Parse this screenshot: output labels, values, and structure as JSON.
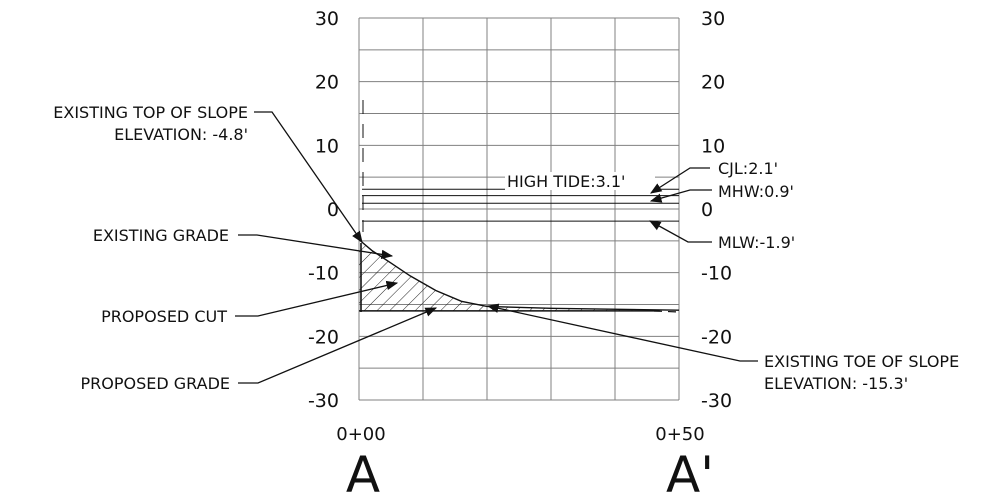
{
  "diagram": {
    "type": "cross-section",
    "y_axis": {
      "min": -30,
      "max": 30,
      "step": 10,
      "ticks": [
        "30",
        "20",
        "10",
        "0",
        "-10",
        "-20",
        "-30"
      ]
    },
    "x_axis": {
      "stations": [
        "0+00",
        "0+50"
      ],
      "grid_step_ft": 10
    },
    "section_labels": {
      "left": "A",
      "right": "A'"
    },
    "levels": [
      {
        "name": "CJL",
        "text": "CJL:2.1'",
        "elevation": 2.1
      },
      {
        "name": "MHW",
        "text": "MHW:0.9'",
        "elevation": 0.9
      },
      {
        "name": "MLW",
        "text": "MLW:-1.9'",
        "elevation": -1.9
      },
      {
        "name": "HIGH TIDE",
        "text": "HIGH TIDE:3.1'",
        "elevation": 3.1
      }
    ],
    "existing_grade": [
      [
        0,
        -4.8
      ],
      [
        2,
        -6.5
      ],
      [
        5,
        -8.5
      ],
      [
        8,
        -10.5
      ],
      [
        12,
        -12.8
      ],
      [
        16,
        -14.5
      ],
      [
        20,
        -15.3
      ],
      [
        30,
        -15.6
      ],
      [
        50,
        -15.9
      ]
    ],
    "proposed_grade": [
      [
        0,
        -16
      ],
      [
        47,
        -16
      ]
    ],
    "top_of_slope_elevation": -4.8,
    "toe_of_slope_elevation": -15.3,
    "callouts": {
      "top_of_slope": {
        "line1": "EXISTING TOP OF SLOPE",
        "line2": "ELEVATION: -4.8'"
      },
      "existing_grade": "EXISTING GRADE",
      "proposed_cut": "PROPOSED CUT",
      "proposed_grade": "PROPOSED GRADE",
      "toe_of_slope": {
        "line1": "EXISTING TOE OF SLOPE",
        "line2": "ELEVATION: -15.3'"
      }
    },
    "colors": {
      "line": "#111111",
      "grid": "#808080",
      "hatch": "#222222"
    }
  }
}
